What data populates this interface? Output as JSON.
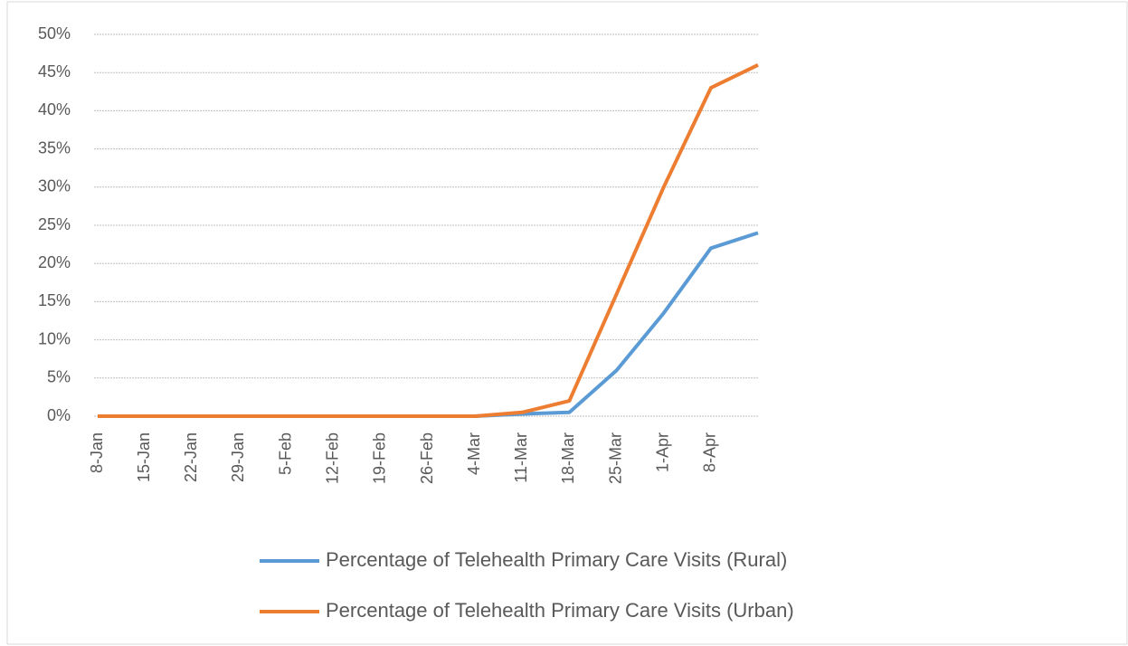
{
  "chart_data": {
    "type": "line",
    "categories": [
      "8-Jan",
      "15-Jan",
      "22-Jan",
      "29-Jan",
      "5-Feb",
      "12-Feb",
      "19-Feb",
      "26-Feb",
      "4-Mar",
      "11-Mar",
      "18-Mar",
      "25-Mar",
      "1-Apr",
      "8-Apr",
      null
    ],
    "series": [
      {
        "name": "Percentage of Telehealth Primary Care Visits (Rural)",
        "color": "#5b9bd5",
        "values": [
          0,
          0,
          0,
          0,
          0,
          0,
          0,
          0,
          0,
          0.3,
          0.5,
          6,
          13.5,
          22,
          24
        ]
      },
      {
        "name": "Percentage of Telehealth Primary Care Visits (Urban)",
        "color": "#ed7d31",
        "values": [
          0,
          0,
          0,
          0,
          0,
          0,
          0,
          0,
          0,
          0.5,
          2,
          16,
          30,
          43,
          46
        ]
      }
    ],
    "ylim": [
      0,
      50
    ],
    "yticks": [
      {
        "value": 0,
        "label": "0%"
      },
      {
        "value": 5,
        "label": "5%"
      },
      {
        "value": 10,
        "label": "10%"
      },
      {
        "value": 15,
        "label": "15%"
      },
      {
        "value": 20,
        "label": "20%"
      },
      {
        "value": 25,
        "label": "25%"
      },
      {
        "value": 30,
        "label": "30%"
      },
      {
        "value": 35,
        "label": "35%"
      },
      {
        "value": 40,
        "label": "40%"
      },
      {
        "value": 45,
        "label": "45%"
      },
      {
        "value": 50,
        "label": "50%"
      }
    ],
    "grid": true,
    "legend": "bottom"
  }
}
